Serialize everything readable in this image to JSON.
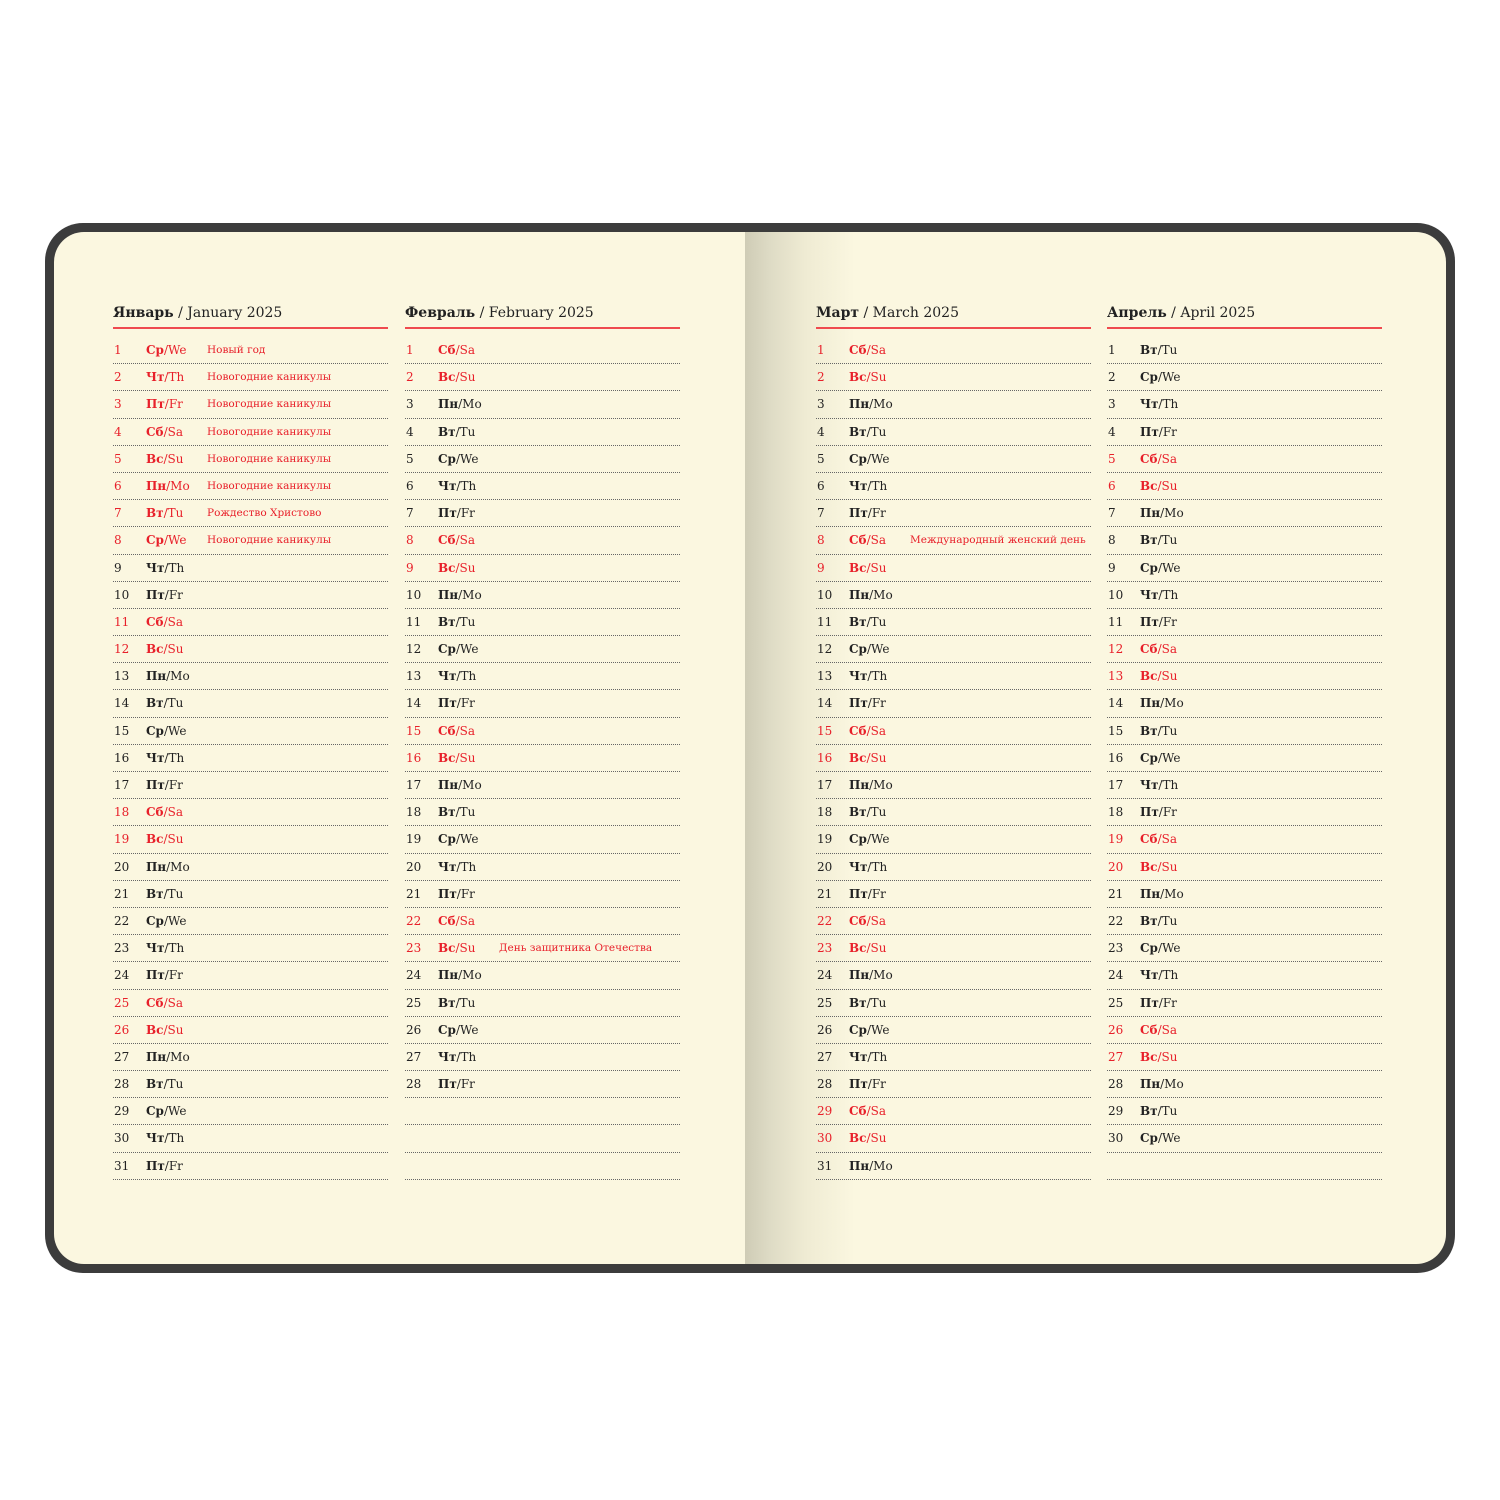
{
  "colors": {
    "holiday": "#e8202a",
    "rule": "#ef4a4f",
    "cover": "#3c3c3c",
    "paper": "#fbf7e0"
  },
  "months": [
    {
      "ru": "Январь",
      "en": "/ January 2025",
      "days": [
        [
          "1",
          "Ср",
          "/We",
          true,
          "Новый год"
        ],
        [
          "2",
          "Чт",
          "/Th",
          true,
          "Новогодние каникулы"
        ],
        [
          "3",
          "Пт",
          "/Fr",
          true,
          "Новогодние каникулы"
        ],
        [
          "4",
          "Сб",
          "/Sa",
          true,
          "Новогодние каникулы"
        ],
        [
          "5",
          "Вс",
          "/Su",
          true,
          "Новогодние каникулы"
        ],
        [
          "6",
          "Пн",
          "/Mo",
          true,
          "Новогодние каникулы"
        ],
        [
          "7",
          "Вт",
          "/Tu",
          true,
          "Рождество Христово"
        ],
        [
          "8",
          "Ср",
          "/We",
          true,
          "Новогодние каникулы"
        ],
        [
          "9",
          "Чт",
          "/Th",
          false,
          ""
        ],
        [
          "10",
          "Пт",
          "/Fr",
          false,
          ""
        ],
        [
          "11",
          "Сб",
          "/Sa",
          true,
          ""
        ],
        [
          "12",
          "Вс",
          "/Su",
          true,
          ""
        ],
        [
          "13",
          "Пн",
          "/Mo",
          false,
          ""
        ],
        [
          "14",
          "Вт",
          "/Tu",
          false,
          ""
        ],
        [
          "15",
          "Ср",
          "/We",
          false,
          ""
        ],
        [
          "16",
          "Чт",
          "/Th",
          false,
          ""
        ],
        [
          "17",
          "Пт",
          "/Fr",
          false,
          ""
        ],
        [
          "18",
          "Сб",
          "/Sa",
          true,
          ""
        ],
        [
          "19",
          "Вс",
          "/Su",
          true,
          ""
        ],
        [
          "20",
          "Пн",
          "/Mo",
          false,
          ""
        ],
        [
          "21",
          "Вт",
          "/Tu",
          false,
          ""
        ],
        [
          "22",
          "Ср",
          "/We",
          false,
          ""
        ],
        [
          "23",
          "Чт",
          "/Th",
          false,
          ""
        ],
        [
          "24",
          "Пт",
          "/Fr",
          false,
          ""
        ],
        [
          "25",
          "Сб",
          "/Sa",
          true,
          ""
        ],
        [
          "26",
          "Вс",
          "/Su",
          true,
          ""
        ],
        [
          "27",
          "Пн",
          "/Mo",
          false,
          ""
        ],
        [
          "28",
          "Вт",
          "/Tu",
          false,
          ""
        ],
        [
          "29",
          "Ср",
          "/We",
          false,
          ""
        ],
        [
          "30",
          "Чт",
          "/Th",
          false,
          ""
        ],
        [
          "31",
          "Пт",
          "/Fr",
          false,
          ""
        ]
      ]
    },
    {
      "ru": "Февраль",
      "en": "/ February 2025",
      "days": [
        [
          "1",
          "Сб",
          "/Sa",
          true,
          ""
        ],
        [
          "2",
          "Вс",
          "/Su",
          true,
          ""
        ],
        [
          "3",
          "Пн",
          "/Mo",
          false,
          ""
        ],
        [
          "4",
          "Вт",
          "/Tu",
          false,
          ""
        ],
        [
          "5",
          "Ср",
          "/We",
          false,
          ""
        ],
        [
          "6",
          "Чт",
          "/Th",
          false,
          ""
        ],
        [
          "7",
          "Пт",
          "/Fr",
          false,
          ""
        ],
        [
          "8",
          "Сб",
          "/Sa",
          true,
          ""
        ],
        [
          "9",
          "Вс",
          "/Su",
          true,
          ""
        ],
        [
          "10",
          "Пн",
          "/Mo",
          false,
          ""
        ],
        [
          "11",
          "Вт",
          "/Tu",
          false,
          ""
        ],
        [
          "12",
          "Ср",
          "/We",
          false,
          ""
        ],
        [
          "13",
          "Чт",
          "/Th",
          false,
          ""
        ],
        [
          "14",
          "Пт",
          "/Fr",
          false,
          ""
        ],
        [
          "15",
          "Сб",
          "/Sa",
          true,
          ""
        ],
        [
          "16",
          "Вс",
          "/Su",
          true,
          ""
        ],
        [
          "17",
          "Пн",
          "/Mo",
          false,
          ""
        ],
        [
          "18",
          "Вт",
          "/Tu",
          false,
          ""
        ],
        [
          "19",
          "Ср",
          "/We",
          false,
          ""
        ],
        [
          "20",
          "Чт",
          "/Th",
          false,
          ""
        ],
        [
          "21",
          "Пт",
          "/Fr",
          false,
          ""
        ],
        [
          "22",
          "Сб",
          "/Sa",
          true,
          ""
        ],
        [
          "23",
          "Вс",
          "/Su",
          true,
          "День защитника Отечества"
        ],
        [
          "24",
          "Пн",
          "/Mo",
          false,
          ""
        ],
        [
          "25",
          "Вт",
          "/Tu",
          false,
          ""
        ],
        [
          "26",
          "Ср",
          "/We",
          false,
          ""
        ],
        [
          "27",
          "Чт",
          "/Th",
          false,
          ""
        ],
        [
          "28",
          "Пт",
          "/Fr",
          false,
          ""
        ]
      ]
    },
    {
      "ru": "Март",
      "en": "/ March 2025",
      "days": [
        [
          "1",
          "Сб",
          "/Sa",
          true,
          ""
        ],
        [
          "2",
          "Вс",
          "/Su",
          true,
          ""
        ],
        [
          "3",
          "Пн",
          "/Mo",
          false,
          ""
        ],
        [
          "4",
          "Вт",
          "/Tu",
          false,
          ""
        ],
        [
          "5",
          "Ср",
          "/We",
          false,
          ""
        ],
        [
          "6",
          "Чт",
          "/Th",
          false,
          ""
        ],
        [
          "7",
          "Пт",
          "/Fr",
          false,
          ""
        ],
        [
          "8",
          "Сб",
          "/Sa",
          true,
          "Международный женский день"
        ],
        [
          "9",
          "Вс",
          "/Su",
          true,
          ""
        ],
        [
          "10",
          "Пн",
          "/Mo",
          false,
          ""
        ],
        [
          "11",
          "Вт",
          "/Tu",
          false,
          ""
        ],
        [
          "12",
          "Ср",
          "/We",
          false,
          ""
        ],
        [
          "13",
          "Чт",
          "/Th",
          false,
          ""
        ],
        [
          "14",
          "Пт",
          "/Fr",
          false,
          ""
        ],
        [
          "15",
          "Сб",
          "/Sa",
          true,
          ""
        ],
        [
          "16",
          "Вс",
          "/Su",
          true,
          ""
        ],
        [
          "17",
          "Пн",
          "/Mo",
          false,
          ""
        ],
        [
          "18",
          "Вт",
          "/Tu",
          false,
          ""
        ],
        [
          "19",
          "Ср",
          "/We",
          false,
          ""
        ],
        [
          "20",
          "Чт",
          "/Th",
          false,
          ""
        ],
        [
          "21",
          "Пт",
          "/Fr",
          false,
          ""
        ],
        [
          "22",
          "Сб",
          "/Sa",
          true,
          ""
        ],
        [
          "23",
          "Вс",
          "/Su",
          true,
          ""
        ],
        [
          "24",
          "Пн",
          "/Mo",
          false,
          ""
        ],
        [
          "25",
          "Вт",
          "/Tu",
          false,
          ""
        ],
        [
          "26",
          "Ср",
          "/We",
          false,
          ""
        ],
        [
          "27",
          "Чт",
          "/Th",
          false,
          ""
        ],
        [
          "28",
          "Пт",
          "/Fr",
          false,
          ""
        ],
        [
          "29",
          "Сб",
          "/Sa",
          true,
          ""
        ],
        [
          "30",
          "Вс",
          "/Su",
          true,
          ""
        ],
        [
          "31",
          "Пн",
          "/Mo",
          false,
          ""
        ]
      ]
    },
    {
      "ru": "Апрель",
      "en": "/ April 2025",
      "days": [
        [
          "1",
          "Вт",
          "/Tu",
          false,
          ""
        ],
        [
          "2",
          "Ср",
          "/We",
          false,
          ""
        ],
        [
          "3",
          "Чт",
          "/Th",
          false,
          ""
        ],
        [
          "4",
          "Пт",
          "/Fr",
          false,
          ""
        ],
        [
          "5",
          "Сб",
          "/Sa",
          true,
          ""
        ],
        [
          "6",
          "Вс",
          "/Su",
          true,
          ""
        ],
        [
          "7",
          "Пн",
          "/Mo",
          false,
          ""
        ],
        [
          "8",
          "Вт",
          "/Tu",
          false,
          ""
        ],
        [
          "9",
          "Ср",
          "/We",
          false,
          ""
        ],
        [
          "10",
          "Чт",
          "/Th",
          false,
          ""
        ],
        [
          "11",
          "Пт",
          "/Fr",
          false,
          ""
        ],
        [
          "12",
          "Сб",
          "/Sa",
          true,
          ""
        ],
        [
          "13",
          "Вс",
          "/Su",
          true,
          ""
        ],
        [
          "14",
          "Пн",
          "/Mo",
          false,
          ""
        ],
        [
          "15",
          "Вт",
          "/Tu",
          false,
          ""
        ],
        [
          "16",
          "Ср",
          "/We",
          false,
          ""
        ],
        [
          "17",
          "Чт",
          "/Th",
          false,
          ""
        ],
        [
          "18",
          "Пт",
          "/Fr",
          false,
          ""
        ],
        [
          "19",
          "Сб",
          "/Sa",
          true,
          ""
        ],
        [
          "20",
          "Вс",
          "/Su",
          true,
          ""
        ],
        [
          "21",
          "Пн",
          "/Mo",
          false,
          ""
        ],
        [
          "22",
          "Вт",
          "/Tu",
          false,
          ""
        ],
        [
          "23",
          "Ср",
          "/We",
          false,
          ""
        ],
        [
          "24",
          "Чт",
          "/Th",
          false,
          ""
        ],
        [
          "25",
          "Пт",
          "/Fr",
          false,
          ""
        ],
        [
          "26",
          "Сб",
          "/Sa",
          true,
          ""
        ],
        [
          "27",
          "Вс",
          "/Su",
          true,
          ""
        ],
        [
          "28",
          "Пн",
          "/Mo",
          false,
          ""
        ],
        [
          "29",
          "Вт",
          "/Tu",
          false,
          ""
        ],
        [
          "30",
          "Ср",
          "/We",
          false,
          ""
        ]
      ]
    }
  ]
}
